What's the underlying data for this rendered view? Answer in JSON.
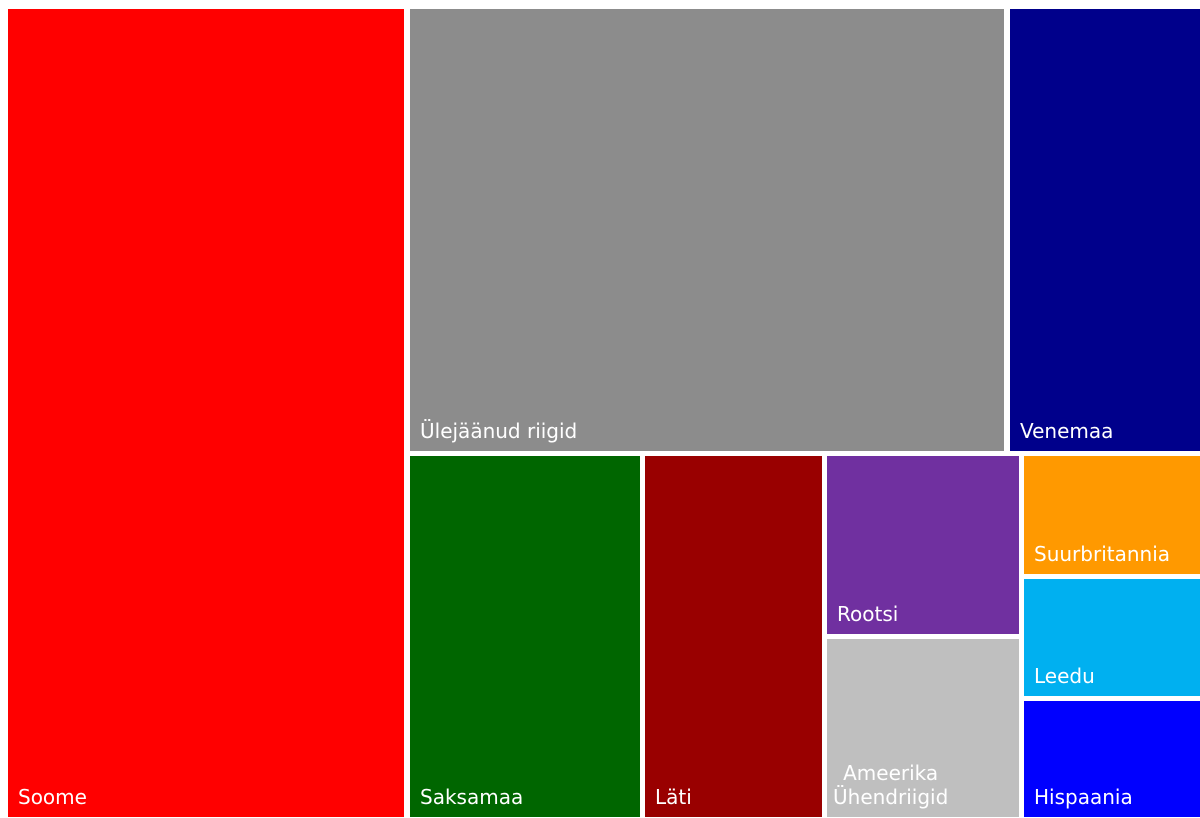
{
  "chart_data": {
    "type": "treemap",
    "title": "",
    "tiles": [
      {
        "id": "soome",
        "label": "Soome",
        "color": "#ff0000"
      },
      {
        "id": "ulejaanud",
        "label": "Ülejäänud riigid",
        "color": "#8c8c8c"
      },
      {
        "id": "venemaa",
        "label": "Venemaa",
        "color": "#00008b"
      },
      {
        "id": "saksamaa",
        "label": "Saksamaa",
        "color": "#006600"
      },
      {
        "id": "lati",
        "label": "Läti",
        "color": "#990000"
      },
      {
        "id": "rootsi",
        "label": "Rootsi",
        "color": "#7030a0"
      },
      {
        "id": "ameerika",
        "label": "Ameerika\nÜhendriigid",
        "color": "#bfbfbf"
      },
      {
        "id": "suurbritannia",
        "label": "Suurbritannia",
        "color": "#ff9900"
      },
      {
        "id": "leedu",
        "label": "Leedu",
        "color": "#00b0f0"
      },
      {
        "id": "hispaania",
        "label": "Hispaania",
        "color": "#0000ff"
      }
    ]
  }
}
